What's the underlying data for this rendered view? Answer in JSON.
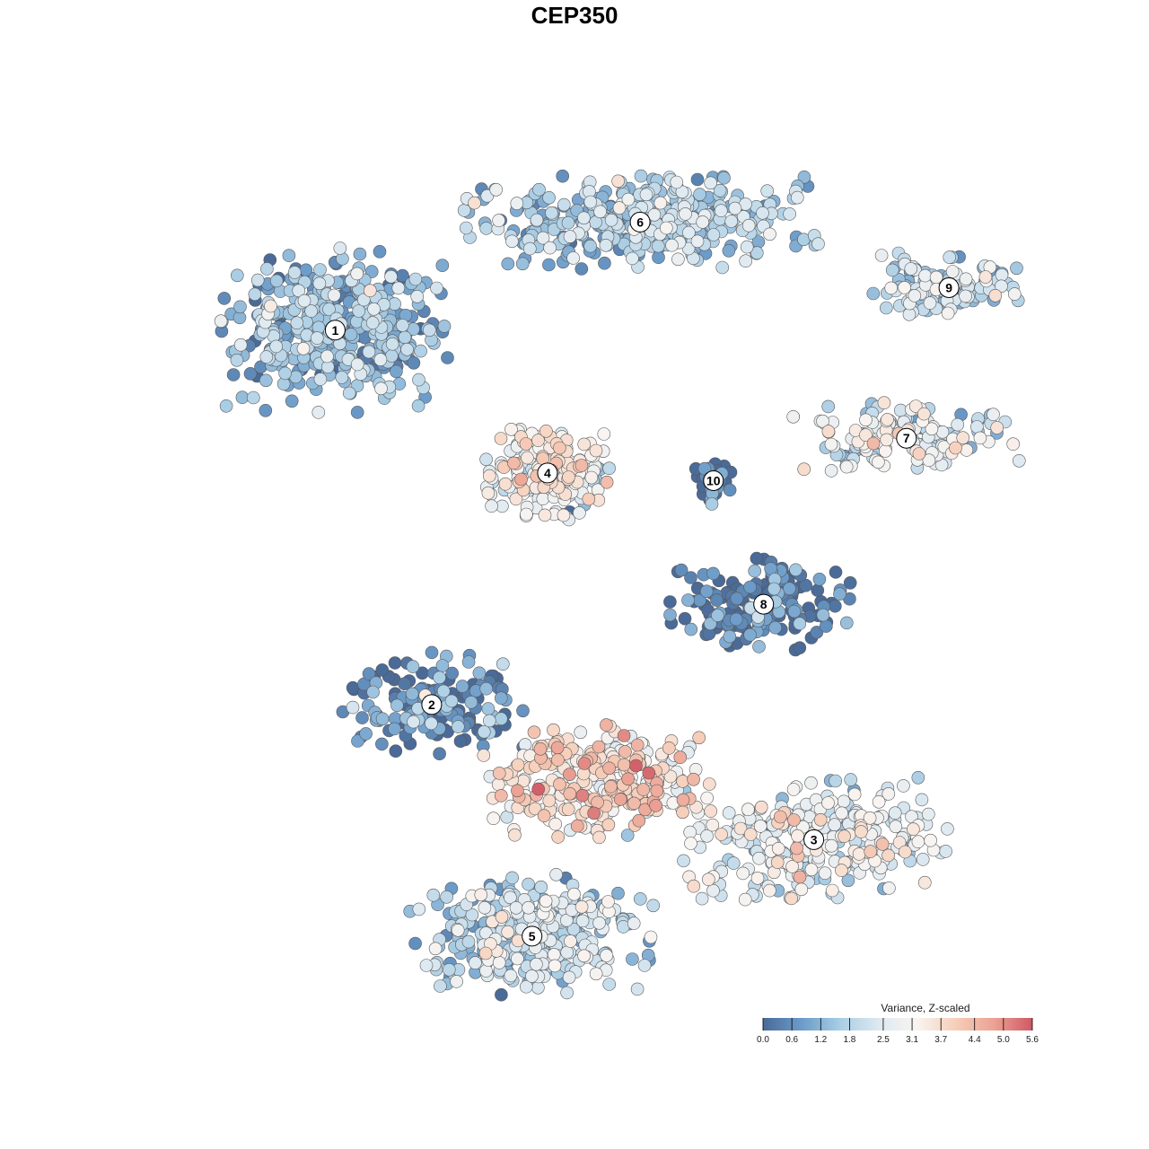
{
  "chart_data": {
    "type": "scatter",
    "title": "CEP350",
    "legend": {
      "title": "Variance, Z-scaled",
      "placement": "bottom-right",
      "ticks": [
        "0.0",
        "0.6",
        "1.2",
        "1.8",
        "2.5",
        "3.1",
        "3.7",
        "4.4",
        "5.0",
        "5.6"
      ],
      "min": 0.0,
      "max": 5.6,
      "colors": [
        "#4a6a98",
        "#6b9bc9",
        "#a9cde4",
        "#dde9f1",
        "#f8f4f1",
        "#f6cfba",
        "#eba294",
        "#cf5865"
      ]
    },
    "clusters": [
      {
        "id": "1",
        "label": "1",
        "center": [
          -6.2,
          5.4
        ],
        "spread": [
          2.2,
          1.6
        ],
        "count": 420,
        "mean": 1.3
      },
      {
        "id": "2",
        "label": "2",
        "center": [
          -3.7,
          -4.3
        ],
        "spread": [
          1.8,
          1.0
        ],
        "count": 160,
        "mean": 0.6
      },
      {
        "id": "3",
        "label": "3",
        "center": [
          6.2,
          -7.8
        ],
        "spread": [
          2.6,
          1.2
        ],
        "count": 300,
        "mean": 2.6
      },
      {
        "id": "4",
        "label": "4",
        "center": [
          -0.7,
          1.7
        ],
        "spread": [
          1.2,
          1.0
        ],
        "count": 200,
        "mean": 2.9
      },
      {
        "id": "5",
        "label": "5",
        "center": [
          -1.1,
          -10.3
        ],
        "spread": [
          2.4,
          1.2
        ],
        "count": 350,
        "mean": 1.9
      },
      {
        "id": "6",
        "label": "6",
        "center": [
          1.7,
          8.2
        ],
        "spread": [
          3.5,
          0.9
        ],
        "count": 380,
        "mean": 1.6
      },
      {
        "id": "7",
        "label": "7",
        "center": [
          8.6,
          2.6
        ],
        "spread": [
          2.2,
          0.7
        ],
        "count": 160,
        "mean": 2.5
      },
      {
        "id": "8",
        "label": "8",
        "center": [
          4.9,
          -1.7
        ],
        "spread": [
          1.8,
          0.9
        ],
        "count": 170,
        "mean": 0.3
      },
      {
        "id": "9",
        "label": "9",
        "center": [
          9.7,
          6.5
        ],
        "spread": [
          1.6,
          0.7
        ],
        "count": 110,
        "mean": 1.9
      },
      {
        "id": "10",
        "label": "10",
        "center": [
          3.6,
          1.5
        ],
        "spread": [
          0.4,
          0.5
        ],
        "count": 40,
        "mean": 0.1
      },
      {
        "id": "core",
        "label": "",
        "center": [
          0.6,
          -6.3
        ],
        "spread": [
          2.2,
          1.1
        ],
        "count": 300,
        "mean": 3.6
      }
    ]
  }
}
